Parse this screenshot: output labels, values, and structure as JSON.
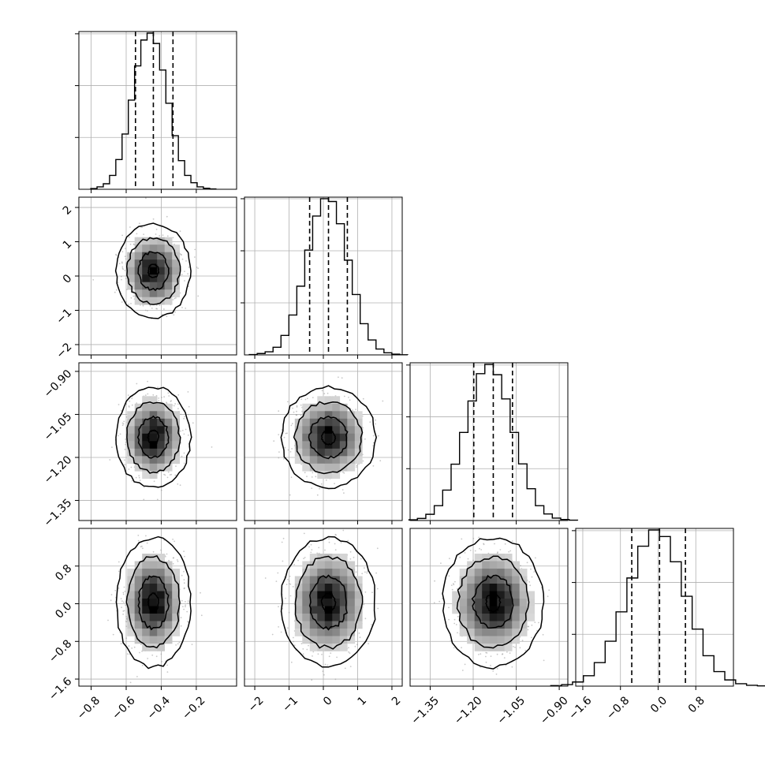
{
  "chart_data": {
    "type": "corner",
    "parameters": 4,
    "quantile_lines": [
      "16th percentile",
      "median",
      "84th percentile"
    ],
    "grid": true,
    "colors": {
      "line": "#000000",
      "grid": "#b0b0b0",
      "scatter": "#9a9a9a"
    },
    "axes": [
      {
        "range": [
          -0.87,
          0.03
        ],
        "ticks": [
          -0.8,
          -0.6,
          -0.4,
          -0.2
        ],
        "tick_labels": [
          "−0.8",
          "−0.6",
          "−0.4",
          "−0.2"
        ],
        "mean": -0.445,
        "sigma": 0.085,
        "quantiles": [
          -0.547,
          -0.445,
          -0.333
        ]
      },
      {
        "range": [
          -2.3,
          2.3
        ],
        "ticks": [
          -2,
          -1,
          0,
          1,
          2
        ],
        "tick_labels": [
          "−2",
          "−1",
          "0",
          "1",
          "2"
        ],
        "mean": 0.15,
        "sigma": 0.55,
        "quantiles": [
          -0.4,
          0.15,
          0.7
        ]
      },
      {
        "range": [
          -1.42,
          -0.87
        ],
        "ticks": [
          -1.35,
          -1.2,
          -1.05,
          -0.9
        ],
        "tick_labels": [
          "−1.35",
          "−1.20",
          "−1.05",
          "−0.90"
        ],
        "mean": -1.13,
        "sigma": 0.07,
        "quantiles": [
          -1.198,
          -1.13,
          -1.063
        ]
      },
      {
        "range": [
          -1.75,
          1.6
        ],
        "ticks": [
          -1.6,
          -0.8,
          0.0,
          0.8
        ],
        "tick_labels": [
          "−1.6",
          "−0.8",
          "0.0",
          "0.8"
        ],
        "mean": 0.03,
        "sigma": 0.55,
        "quantiles": [
          -0.56,
          0.03,
          0.58
        ]
      }
    ],
    "histograms": [
      {
        "param": 0,
        "bins": 20,
        "y_ticks": [
          1500,
          3000,
          4500
        ],
        "counts": [
          20,
          70,
          160,
          400,
          860,
          1600,
          2580,
          3570,
          4320,
          4520,
          4220,
          3450,
          2490,
          1550,
          830,
          400,
          190,
          70,
          30,
          10
        ]
      },
      {
        "param": 1,
        "bins": 20,
        "y_ticks": [
          1500,
          3000,
          4500
        ],
        "counts": [
          10,
          40,
          90,
          220,
          560,
          1150,
          1980,
          3020,
          4000,
          4500,
          4420,
          3780,
          2730,
          1740,
          900,
          430,
          170,
          60,
          20,
          5
        ]
      },
      {
        "param": 2,
        "bins": 20,
        "y_ticks": [
          1500,
          3000,
          4500
        ],
        "counts": [
          20,
          60,
          180,
          430,
          880,
          1630,
          2550,
          3460,
          4250,
          4520,
          4220,
          3520,
          2550,
          1640,
          920,
          430,
          190,
          70,
          30,
          10
        ]
      },
      {
        "param": 3,
        "bins": 20,
        "y_ticks": [
          1500,
          3000,
          4500
        ],
        "counts": [
          15,
          45,
          120,
          300,
          680,
          1300,
          2150,
          3130,
          4050,
          4520,
          4330,
          3600,
          2600,
          1650,
          880,
          420,
          180,
          70,
          25,
          8
        ]
      }
    ],
    "pairs": [
      {
        "x": 0,
        "y": 1
      },
      {
        "x": 0,
        "y": 2
      },
      {
        "x": 1,
        "y": 2
      },
      {
        "x": 0,
        "y": 3
      },
      {
        "x": 1,
        "y": 3
      },
      {
        "x": 2,
        "y": 3
      }
    ]
  }
}
